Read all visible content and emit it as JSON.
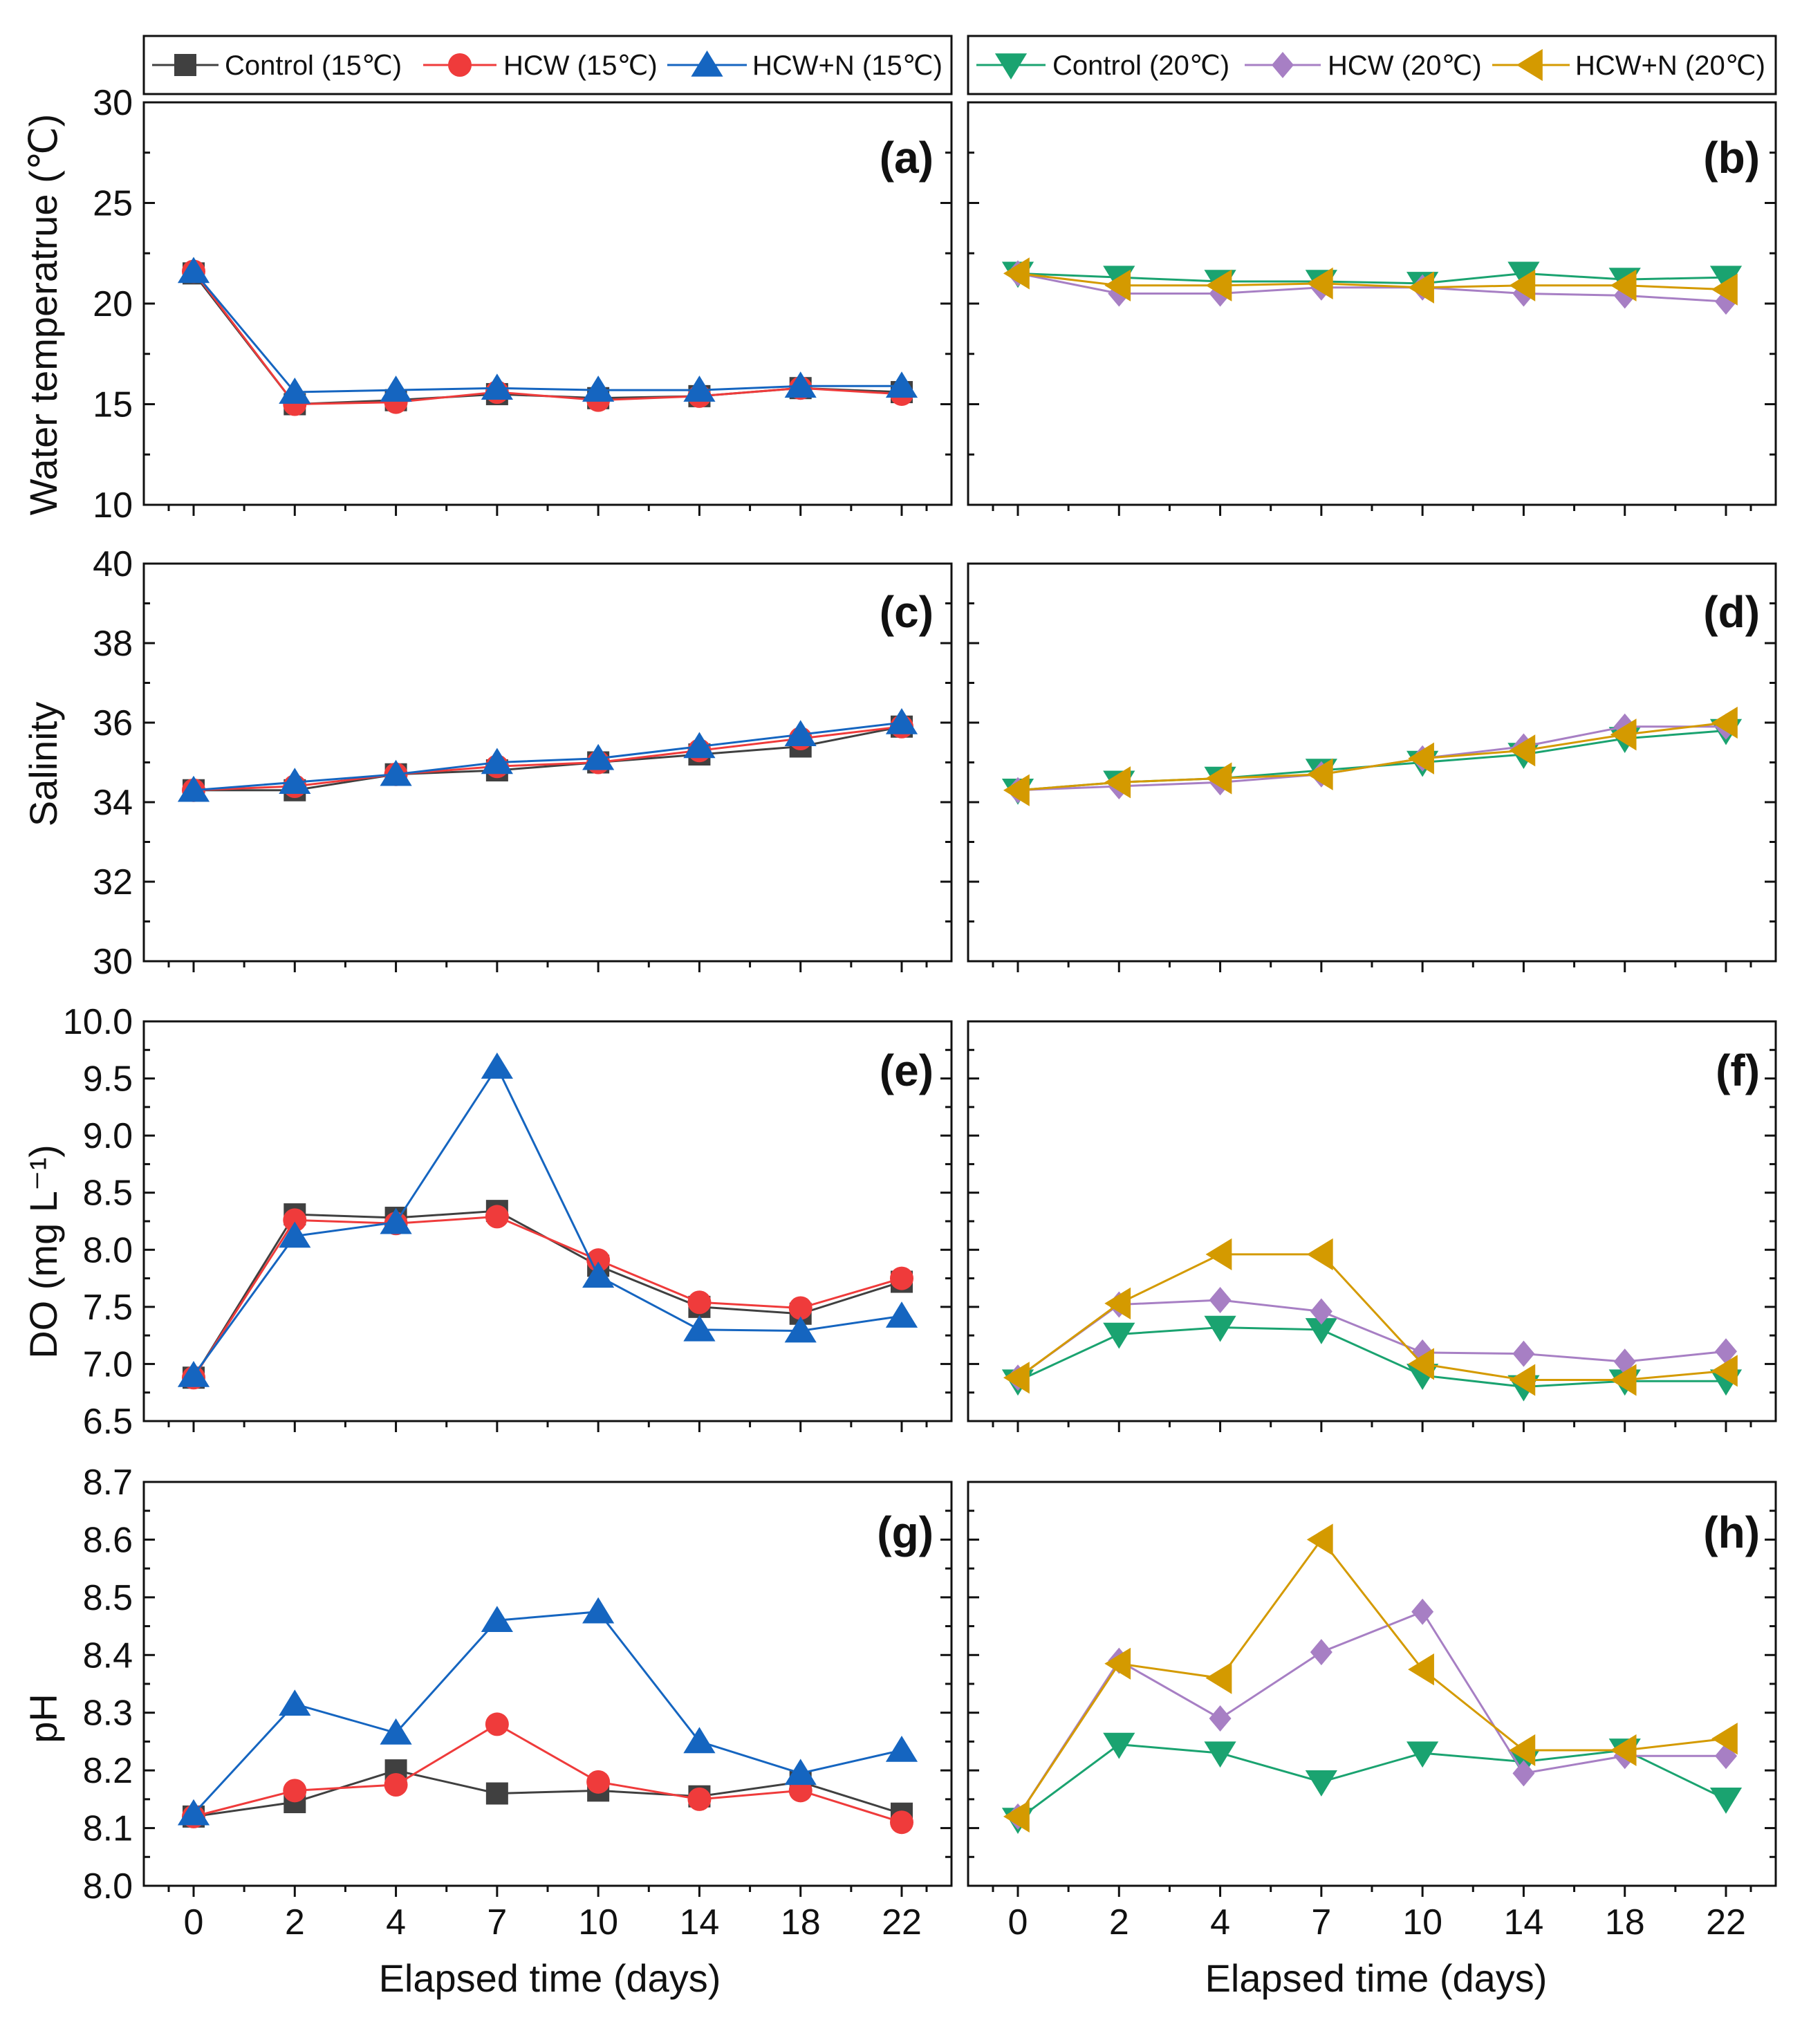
{
  "colors": {
    "control15": "#404040",
    "hcw15": "#ef3b3b",
    "hcwn15": "#1565c0",
    "control20": "#1aa370",
    "hcw20": "#a77fc4",
    "hcwn20": "#d49a00"
  },
  "legend": {
    "left": [
      {
        "label": "Control (15℃)",
        "color": "#404040",
        "marker": "square"
      },
      {
        "label": "HCW (15℃)",
        "color": "#ef3b3b",
        "marker": "circle"
      },
      {
        "label": "HCW+N (15℃)",
        "color": "#1565c0",
        "marker": "triangle-up"
      }
    ],
    "right": [
      {
        "label": "Control (20℃)",
        "color": "#1aa370",
        "marker": "triangle-down"
      },
      {
        "label": "HCW (20℃)",
        "color": "#a77fc4",
        "marker": "diamond"
      },
      {
        "label": "HCW+N (20℃)",
        "color": "#d49a00",
        "marker": "triangle-left"
      }
    ]
  },
  "x_axis": {
    "label": "Elapsed time (days)",
    "categories": [
      "0",
      "2",
      "4",
      "7",
      "10",
      "14",
      "18",
      "22"
    ]
  },
  "chart_data": [
    {
      "panel": "(a)",
      "type": "line",
      "ylabel": "Water temperatrue (℃)",
      "ylim": [
        10,
        30
      ],
      "yticks": [
        10,
        15,
        20,
        25,
        30
      ],
      "categories": [
        "0",
        "2",
        "4",
        "7",
        "10",
        "14",
        "18",
        "22"
      ],
      "series": [
        {
          "name": "Control (15℃)",
          "marker": "square",
          "color": "#404040",
          "values": [
            21.5,
            15.0,
            15.2,
            15.5,
            15.3,
            15.4,
            15.8,
            15.6
          ]
        },
        {
          "name": "HCW (15℃)",
          "marker": "circle",
          "color": "#ef3b3b",
          "values": [
            21.6,
            15.0,
            15.1,
            15.6,
            15.2,
            15.4,
            15.8,
            15.5
          ]
        },
        {
          "name": "HCW+N (15℃)",
          "marker": "triangle-up",
          "color": "#1565c0",
          "values": [
            21.6,
            15.6,
            15.7,
            15.8,
            15.7,
            15.7,
            15.9,
            15.9
          ]
        }
      ]
    },
    {
      "panel": "(b)",
      "type": "line",
      "ylabel": "",
      "ylim": [
        10,
        30
      ],
      "yticks": [
        10,
        15,
        20,
        25,
        30
      ],
      "categories": [
        "0",
        "2",
        "4",
        "7",
        "10",
        "14",
        "18",
        "22"
      ],
      "series": [
        {
          "name": "Control (20℃)",
          "marker": "triangle-down",
          "color": "#1aa370",
          "values": [
            21.5,
            21.3,
            21.1,
            21.1,
            21.0,
            21.5,
            21.2,
            21.3
          ]
        },
        {
          "name": "HCW (20℃)",
          "marker": "diamond",
          "color": "#a77fc4",
          "values": [
            21.5,
            20.5,
            20.5,
            20.8,
            20.8,
            20.5,
            20.4,
            20.1
          ]
        },
        {
          "name": "HCW+N (20℃)",
          "marker": "triangle-left",
          "color": "#d49a00",
          "values": [
            21.5,
            20.9,
            20.9,
            21.0,
            20.8,
            20.9,
            20.9,
            20.7
          ]
        }
      ]
    },
    {
      "panel": "(c)",
      "type": "line",
      "ylabel": "Salinity",
      "ylim": [
        30,
        40
      ],
      "yticks": [
        30,
        32,
        34,
        36,
        38,
        40
      ],
      "categories": [
        "0",
        "2",
        "4",
        "7",
        "10",
        "14",
        "18",
        "22"
      ],
      "series": [
        {
          "name": "Control (15℃)",
          "marker": "square",
          "color": "#404040",
          "values": [
            34.3,
            34.3,
            34.7,
            34.8,
            35.0,
            35.2,
            35.4,
            35.9
          ]
        },
        {
          "name": "HCW (15℃)",
          "marker": "circle",
          "color": "#ef3b3b",
          "values": [
            34.3,
            34.4,
            34.7,
            34.9,
            35.0,
            35.3,
            35.6,
            35.9
          ]
        },
        {
          "name": "HCW+N (15℃)",
          "marker": "triangle-up",
          "color": "#1565c0",
          "values": [
            34.3,
            34.5,
            34.7,
            35.0,
            35.1,
            35.4,
            35.7,
            36.0
          ]
        }
      ]
    },
    {
      "panel": "(d)",
      "type": "line",
      "ylabel": "",
      "ylim": [
        30,
        40
      ],
      "yticks": [
        30,
        32,
        34,
        36,
        38,
        40
      ],
      "categories": [
        "0",
        "2",
        "4",
        "7",
        "10",
        "14",
        "18",
        "22"
      ],
      "series": [
        {
          "name": "Control (20℃)",
          "marker": "triangle-down",
          "color": "#1aa370",
          "values": [
            34.3,
            34.5,
            34.6,
            34.8,
            35.0,
            35.2,
            35.6,
            35.8
          ]
        },
        {
          "name": "HCW (20℃)",
          "marker": "diamond",
          "color": "#a77fc4",
          "values": [
            34.3,
            34.4,
            34.5,
            34.7,
            35.1,
            35.4,
            35.9,
            35.9
          ]
        },
        {
          "name": "HCW+N (20℃)",
          "marker": "triangle-left",
          "color": "#d49a00",
          "values": [
            34.3,
            34.5,
            34.6,
            34.7,
            35.1,
            35.3,
            35.7,
            36.0
          ]
        }
      ]
    },
    {
      "panel": "(e)",
      "type": "line",
      "ylabel": "DO (mg L⁻¹)",
      "ylim": [
        6.5,
        10.0
      ],
      "yticks": [
        "6.5",
        "7.0",
        "7.5",
        "8.0",
        "8.5",
        "9.0",
        "9.5",
        "10.0"
      ],
      "categories": [
        "0",
        "2",
        "4",
        "7",
        "10",
        "14",
        "18",
        "22"
      ],
      "series": [
        {
          "name": "Control (15℃)",
          "marker": "square",
          "color": "#404040",
          "values": [
            6.88,
            8.31,
            8.28,
            8.34,
            7.86,
            7.5,
            7.44,
            7.72
          ]
        },
        {
          "name": "HCW (15℃)",
          "marker": "circle",
          "color": "#ef3b3b",
          "values": [
            6.88,
            8.26,
            8.23,
            8.29,
            7.91,
            7.54,
            7.49,
            7.75
          ]
        },
        {
          "name": "HCW+N (15℃)",
          "marker": "triangle-up",
          "color": "#1565c0",
          "values": [
            6.9,
            8.12,
            8.24,
            9.6,
            7.77,
            7.3,
            7.29,
            7.42
          ]
        }
      ]
    },
    {
      "panel": "(f)",
      "type": "line",
      "ylabel": "",
      "ylim": [
        6.5,
        10.0
      ],
      "yticks": [
        "6.5",
        "7.0",
        "7.5",
        "8.0",
        "8.5",
        "9.0",
        "9.5",
        "10.0"
      ],
      "categories": [
        "0",
        "2",
        "4",
        "7",
        "10",
        "14",
        "18",
        "22"
      ],
      "series": [
        {
          "name": "Control (20℃)",
          "marker": "triangle-down",
          "color": "#1aa370",
          "values": [
            6.85,
            7.26,
            7.32,
            7.3,
            6.9,
            6.8,
            6.85,
            6.85
          ]
        },
        {
          "name": "HCW (20℃)",
          "marker": "diamond",
          "color": "#a77fc4",
          "values": [
            6.88,
            7.52,
            7.56,
            7.46,
            7.1,
            7.09,
            7.02,
            7.11
          ]
        },
        {
          "name": "HCW+N (20℃)",
          "marker": "triangle-left",
          "color": "#d49a00",
          "values": [
            6.88,
            7.53,
            7.96,
            7.96,
            7.0,
            6.86,
            6.86,
            6.94
          ]
        }
      ]
    },
    {
      "panel": "(g)",
      "type": "line",
      "ylabel": "pH",
      "ylim": [
        8.0,
        8.7
      ],
      "yticks": [
        "8.0",
        "8.1",
        "8.2",
        "8.3",
        "8.4",
        "8.5",
        "8.6",
        "8.7"
      ],
      "categories": [
        "0",
        "2",
        "4",
        "7",
        "10",
        "14",
        "18",
        "22"
      ],
      "series": [
        {
          "name": "Control (15℃)",
          "marker": "square",
          "color": "#404040",
          "values": [
            8.12,
            8.145,
            8.2,
            8.16,
            8.165,
            8.155,
            8.18,
            8.125
          ]
        },
        {
          "name": "HCW (15℃)",
          "marker": "circle",
          "color": "#ef3b3b",
          "values": [
            8.12,
            8.165,
            8.175,
            8.28,
            8.18,
            8.15,
            8.165,
            8.11
          ]
        },
        {
          "name": "HCW+N (15℃)",
          "marker": "triangle-up",
          "color": "#1565c0",
          "values": [
            8.125,
            8.315,
            8.265,
            8.46,
            8.475,
            8.25,
            8.195,
            8.235
          ]
        }
      ]
    },
    {
      "panel": "(h)",
      "type": "line",
      "ylabel": "",
      "ylim": [
        8.0,
        8.7
      ],
      "yticks": [
        "8.0",
        "8.1",
        "8.2",
        "8.3",
        "8.4",
        "8.5",
        "8.6",
        "8.7"
      ],
      "categories": [
        "0",
        "2",
        "4",
        "7",
        "10",
        "14",
        "18",
        "22"
      ],
      "series": [
        {
          "name": "Control (20℃)",
          "marker": "triangle-down",
          "color": "#1aa370",
          "values": [
            8.115,
            8.245,
            8.23,
            8.18,
            8.23,
            8.215,
            8.235,
            8.15
          ]
        },
        {
          "name": "HCW (20℃)",
          "marker": "diamond",
          "color": "#a77fc4",
          "values": [
            8.12,
            8.39,
            8.29,
            8.405,
            8.475,
            8.195,
            8.225,
            8.225
          ]
        },
        {
          "name": "HCW+N (20℃)",
          "marker": "triangle-left",
          "color": "#d49a00",
          "values": [
            8.12,
            8.385,
            8.36,
            8.6,
            8.375,
            8.235,
            8.235,
            8.255
          ]
        }
      ]
    }
  ]
}
